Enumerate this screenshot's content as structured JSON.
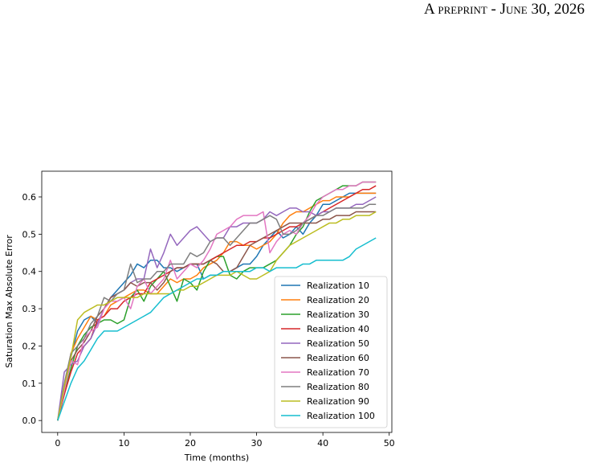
{
  "header": {
    "running_head": "A preprint - June 30, 2026"
  },
  "chart_data": {
    "type": "line",
    "xlabel": "Time (months)",
    "ylabel": "Saturation Max Absolute Error",
    "x": [
      0,
      1,
      2,
      3,
      4,
      5,
      6,
      7,
      8,
      9,
      10,
      11,
      12,
      13,
      14,
      15,
      16,
      17,
      18,
      19,
      20,
      21,
      22,
      23,
      24,
      25,
      26,
      27,
      28,
      29,
      30,
      31,
      32,
      33,
      34,
      35,
      36,
      37,
      38,
      39,
      40,
      41,
      42,
      43,
      44,
      45,
      46,
      47,
      48
    ],
    "xlim": [
      -2.4,
      50.4
    ],
    "xticks": [
      0,
      10,
      20,
      30,
      40,
      50
    ],
    "ylim": [
      -0.032,
      0.669
    ],
    "yticks": [
      {
        "value": 0,
        "label": "0.0"
      },
      0.1,
      0.2,
      0.3,
      0.4,
      0.5,
      0.6
    ],
    "grid": false,
    "legend": "lower right",
    "series": [
      {
        "name": "Realization 10",
        "color": "#1f77b4",
        "values": [
          0,
          0.08,
          0.17,
          0.24,
          0.27,
          0.28,
          0.26,
          0.3,
          0.33,
          0.35,
          0.37,
          0.39,
          0.42,
          0.41,
          0.43,
          0.43,
          0.41,
          0.41,
          0.4,
          0.41,
          0.42,
          0.42,
          0.38,
          0.39,
          0.39,
          0.4,
          0.4,
          0.41,
          0.42,
          0.42,
          0.44,
          0.47,
          0.49,
          0.51,
          0.49,
          0.5,
          0.52,
          0.5,
          0.53,
          0.55,
          0.58,
          0.58,
          0.59,
          0.6,
          0.61,
          0.61,
          0.61,
          0.61,
          0.61
        ]
      },
      {
        "name": "Realization 20",
        "color": "#ff7f0e",
        "values": [
          0,
          0.09,
          0.18,
          0.22,
          0.25,
          0.28,
          0.27,
          0.28,
          0.31,
          0.32,
          0.33,
          0.34,
          0.35,
          0.35,
          0.34,
          0.34,
          0.36,
          0.38,
          0.37,
          0.38,
          0.38,
          0.39,
          0.41,
          0.42,
          0.43,
          0.45,
          0.48,
          0.48,
          0.47,
          0.47,
          0.46,
          0.47,
          0.48,
          0.5,
          0.53,
          0.55,
          0.56,
          0.56,
          0.57,
          0.58,
          0.59,
          0.59,
          0.6,
          0.6,
          0.6,
          0.61,
          0.61,
          0.61,
          0.61
        ]
      },
      {
        "name": "Realization 30",
        "color": "#2ca02c",
        "values": [
          0,
          0.07,
          0.14,
          0.2,
          0.23,
          0.25,
          0.26,
          0.27,
          0.27,
          0.26,
          0.27,
          0.33,
          0.35,
          0.32,
          0.36,
          0.38,
          0.4,
          0.36,
          0.32,
          0.38,
          0.37,
          0.35,
          0.4,
          0.43,
          0.44,
          0.44,
          0.39,
          0.38,
          0.4,
          0.41,
          0.41,
          0.41,
          0.42,
          0.43,
          0.45,
          0.47,
          0.5,
          0.52,
          0.56,
          0.59,
          0.6,
          0.61,
          0.62,
          0.63,
          0.63,
          0.63,
          0.64,
          0.64,
          0.64
        ]
      },
      {
        "name": "Realization 40",
        "color": "#d62728",
        "values": [
          0,
          0.07,
          0.13,
          0.18,
          0.2,
          0.22,
          0.27,
          0.28,
          0.3,
          0.3,
          0.32,
          0.33,
          0.34,
          0.34,
          0.37,
          0.38,
          0.39,
          0.4,
          0.41,
          0.41,
          0.42,
          0.42,
          0.42,
          0.43,
          0.44,
          0.45,
          0.46,
          0.47,
          0.47,
          0.48,
          0.48,
          0.49,
          0.49,
          0.5,
          0.51,
          0.52,
          0.52,
          0.53,
          0.54,
          0.55,
          0.56,
          0.57,
          0.58,
          0.59,
          0.6,
          0.61,
          0.62,
          0.62,
          0.63
        ]
      },
      {
        "name": "Realization 50",
        "color": "#9467bd",
        "values": [
          0,
          0.13,
          0.15,
          0.16,
          0.2,
          0.22,
          0.26,
          0.3,
          0.33,
          0.34,
          0.35,
          0.37,
          0.38,
          0.38,
          0.46,
          0.41,
          0.45,
          0.5,
          0.47,
          0.49,
          0.51,
          0.52,
          0.5,
          0.48,
          0.49,
          0.49,
          0.52,
          0.52,
          0.53,
          0.53,
          0.53,
          0.54,
          0.56,
          0.55,
          0.56,
          0.57,
          0.57,
          0.56,
          0.56,
          0.55,
          0.56,
          0.56,
          0.57,
          0.57,
          0.57,
          0.58,
          0.58,
          0.59,
          0.6
        ]
      },
      {
        "name": "Realization 60",
        "color": "#8c564b",
        "values": [
          0,
          0.08,
          0.16,
          0.19,
          0.21,
          0.24,
          0.28,
          0.3,
          0.33,
          0.34,
          0.35,
          0.37,
          0.36,
          0.37,
          0.37,
          0.35,
          0.37,
          0.4,
          0.41,
          0.41,
          0.42,
          0.42,
          0.42,
          0.43,
          0.42,
          0.4,
          0.4,
          0.41,
          0.44,
          0.47,
          0.48,
          0.49,
          0.5,
          0.51,
          0.52,
          0.53,
          0.53,
          0.53,
          0.53,
          0.53,
          0.54,
          0.54,
          0.55,
          0.55,
          0.55,
          0.56,
          0.56,
          0.56,
          0.56
        ]
      },
      {
        "name": "Realization 70",
        "color": "#e377c2",
        "values": [
          0,
          0.08,
          0.16,
          0.15,
          0.22,
          0.24,
          0.25,
          0.3,
          0.32,
          0.32,
          0.33,
          0.3,
          0.36,
          0.38,
          0.34,
          0.36,
          0.38,
          0.43,
          0.38,
          0.4,
          0.42,
          0.41,
          0.43,
          0.46,
          0.5,
          0.51,
          0.52,
          0.54,
          0.55,
          0.55,
          0.55,
          0.56,
          0.45,
          0.48,
          0.5,
          0.51,
          0.5,
          0.53,
          0.55,
          0.58,
          0.6,
          0.61,
          0.62,
          0.62,
          0.63,
          0.63,
          0.64,
          0.64,
          0.64
        ]
      },
      {
        "name": "Realization 80",
        "color": "#7f7f7f",
        "values": [
          0,
          0.1,
          0.18,
          0.2,
          0.22,
          0.26,
          0.28,
          0.33,
          0.32,
          0.34,
          0.35,
          0.42,
          0.37,
          0.38,
          0.38,
          0.4,
          0.4,
          0.42,
          0.42,
          0.42,
          0.45,
          0.44,
          0.45,
          0.48,
          0.49,
          0.49,
          0.47,
          0.49,
          0.51,
          0.53,
          0.53,
          0.54,
          0.55,
          0.54,
          0.5,
          0.5,
          0.51,
          0.53,
          0.54,
          0.55,
          0.55,
          0.56,
          0.57,
          0.57,
          0.57,
          0.57,
          0.57,
          0.58,
          0.58
        ]
      },
      {
        "name": "Realization 90",
        "color": "#bcbd22",
        "values": [
          0,
          0.09,
          0.17,
          0.27,
          0.29,
          0.3,
          0.31,
          0.31,
          0.32,
          0.33,
          0.33,
          0.33,
          0.33,
          0.34,
          0.34,
          0.34,
          0.34,
          0.34,
          0.35,
          0.35,
          0.36,
          0.36,
          0.37,
          0.38,
          0.39,
          0.39,
          0.39,
          0.4,
          0.39,
          0.38,
          0.38,
          0.39,
          0.4,
          0.43,
          0.45,
          0.47,
          0.48,
          0.49,
          0.5,
          0.51,
          0.52,
          0.53,
          0.53,
          0.54,
          0.54,
          0.55,
          0.55,
          0.55,
          0.56
        ]
      },
      {
        "name": "Realization 100",
        "color": "#17becf",
        "values": [
          0,
          0.05,
          0.1,
          0.14,
          0.16,
          0.19,
          0.22,
          0.24,
          0.24,
          0.24,
          0.25,
          0.26,
          0.27,
          0.28,
          0.29,
          0.31,
          0.33,
          0.34,
          0.35,
          0.36,
          0.37,
          0.38,
          0.38,
          0.39,
          0.39,
          0.4,
          0.4,
          0.4,
          0.4,
          0.4,
          0.41,
          0.41,
          0.4,
          0.41,
          0.41,
          0.41,
          0.41,
          0.42,
          0.42,
          0.43,
          0.43,
          0.43,
          0.43,
          0.43,
          0.44,
          0.46,
          0.47,
          0.48,
          0.49
        ]
      }
    ]
  }
}
